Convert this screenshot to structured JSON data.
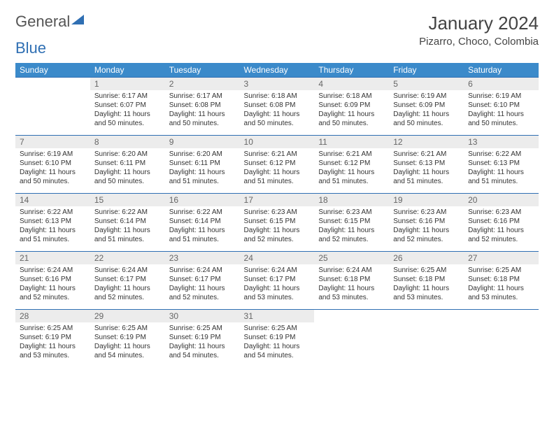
{
  "brand": {
    "part1": "General",
    "part2": "Blue"
  },
  "title": "January 2024",
  "location": "Pizarro, Choco, Colombia",
  "colors": {
    "header_bg": "#3b8aca",
    "header_text": "#ffffff",
    "daynum_bg": "#ececec",
    "daynum_text": "#666666",
    "rule": "#2f6fb3",
    "text": "#333333"
  },
  "dow": [
    "Sunday",
    "Monday",
    "Tuesday",
    "Wednesday",
    "Thursday",
    "Friday",
    "Saturday"
  ],
  "weeks": [
    {
      "nums": [
        "",
        "1",
        "2",
        "3",
        "4",
        "5",
        "6"
      ],
      "cells": [
        null,
        {
          "sunrise": "6:17 AM",
          "sunset": "6:07 PM",
          "daylight": "11 hours and 50 minutes."
        },
        {
          "sunrise": "6:17 AM",
          "sunset": "6:08 PM",
          "daylight": "11 hours and 50 minutes."
        },
        {
          "sunrise": "6:18 AM",
          "sunset": "6:08 PM",
          "daylight": "11 hours and 50 minutes."
        },
        {
          "sunrise": "6:18 AM",
          "sunset": "6:09 PM",
          "daylight": "11 hours and 50 minutes."
        },
        {
          "sunrise": "6:19 AM",
          "sunset": "6:09 PM",
          "daylight": "11 hours and 50 minutes."
        },
        {
          "sunrise": "6:19 AM",
          "sunset": "6:10 PM",
          "daylight": "11 hours and 50 minutes."
        }
      ]
    },
    {
      "nums": [
        "7",
        "8",
        "9",
        "10",
        "11",
        "12",
        "13"
      ],
      "cells": [
        {
          "sunrise": "6:19 AM",
          "sunset": "6:10 PM",
          "daylight": "11 hours and 50 minutes."
        },
        {
          "sunrise": "6:20 AM",
          "sunset": "6:11 PM",
          "daylight": "11 hours and 50 minutes."
        },
        {
          "sunrise": "6:20 AM",
          "sunset": "6:11 PM",
          "daylight": "11 hours and 51 minutes."
        },
        {
          "sunrise": "6:21 AM",
          "sunset": "6:12 PM",
          "daylight": "11 hours and 51 minutes."
        },
        {
          "sunrise": "6:21 AM",
          "sunset": "6:12 PM",
          "daylight": "11 hours and 51 minutes."
        },
        {
          "sunrise": "6:21 AM",
          "sunset": "6:13 PM",
          "daylight": "11 hours and 51 minutes."
        },
        {
          "sunrise": "6:22 AM",
          "sunset": "6:13 PM",
          "daylight": "11 hours and 51 minutes."
        }
      ]
    },
    {
      "nums": [
        "14",
        "15",
        "16",
        "17",
        "18",
        "19",
        "20"
      ],
      "cells": [
        {
          "sunrise": "6:22 AM",
          "sunset": "6:13 PM",
          "daylight": "11 hours and 51 minutes."
        },
        {
          "sunrise": "6:22 AM",
          "sunset": "6:14 PM",
          "daylight": "11 hours and 51 minutes."
        },
        {
          "sunrise": "6:22 AM",
          "sunset": "6:14 PM",
          "daylight": "11 hours and 51 minutes."
        },
        {
          "sunrise": "6:23 AM",
          "sunset": "6:15 PM",
          "daylight": "11 hours and 52 minutes."
        },
        {
          "sunrise": "6:23 AM",
          "sunset": "6:15 PM",
          "daylight": "11 hours and 52 minutes."
        },
        {
          "sunrise": "6:23 AM",
          "sunset": "6:16 PM",
          "daylight": "11 hours and 52 minutes."
        },
        {
          "sunrise": "6:23 AM",
          "sunset": "6:16 PM",
          "daylight": "11 hours and 52 minutes."
        }
      ]
    },
    {
      "nums": [
        "21",
        "22",
        "23",
        "24",
        "25",
        "26",
        "27"
      ],
      "cells": [
        {
          "sunrise": "6:24 AM",
          "sunset": "6:16 PM",
          "daylight": "11 hours and 52 minutes."
        },
        {
          "sunrise": "6:24 AM",
          "sunset": "6:17 PM",
          "daylight": "11 hours and 52 minutes."
        },
        {
          "sunrise": "6:24 AM",
          "sunset": "6:17 PM",
          "daylight": "11 hours and 52 minutes."
        },
        {
          "sunrise": "6:24 AM",
          "sunset": "6:17 PM",
          "daylight": "11 hours and 53 minutes."
        },
        {
          "sunrise": "6:24 AM",
          "sunset": "6:18 PM",
          "daylight": "11 hours and 53 minutes."
        },
        {
          "sunrise": "6:25 AM",
          "sunset": "6:18 PM",
          "daylight": "11 hours and 53 minutes."
        },
        {
          "sunrise": "6:25 AM",
          "sunset": "6:18 PM",
          "daylight": "11 hours and 53 minutes."
        }
      ]
    },
    {
      "nums": [
        "28",
        "29",
        "30",
        "31",
        "",
        "",
        ""
      ],
      "cells": [
        {
          "sunrise": "6:25 AM",
          "sunset": "6:19 PM",
          "daylight": "11 hours and 53 minutes."
        },
        {
          "sunrise": "6:25 AM",
          "sunset": "6:19 PM",
          "daylight": "11 hours and 54 minutes."
        },
        {
          "sunrise": "6:25 AM",
          "sunset": "6:19 PM",
          "daylight": "11 hours and 54 minutes."
        },
        {
          "sunrise": "6:25 AM",
          "sunset": "6:19 PM",
          "daylight": "11 hours and 54 minutes."
        },
        null,
        null,
        null
      ]
    }
  ],
  "labels": {
    "sunrise": "Sunrise: ",
    "sunset": "Sunset: ",
    "daylight": "Daylight: "
  }
}
